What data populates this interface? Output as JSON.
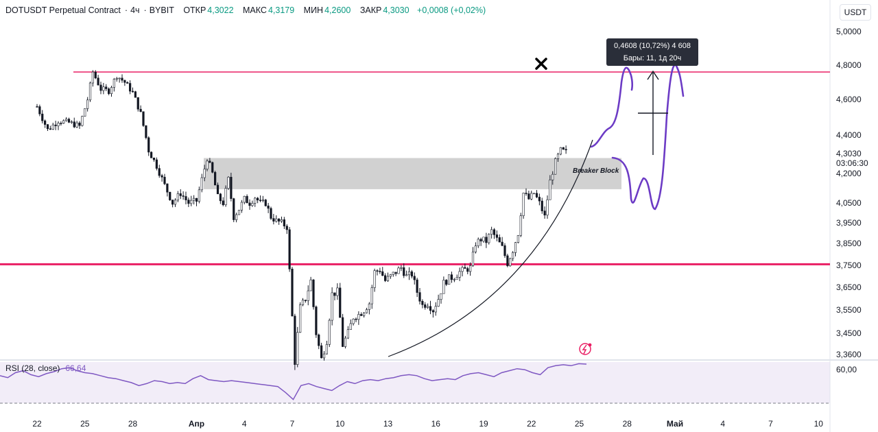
{
  "header": {
    "symbol": "DOTUSDT Perpetual Contract",
    "interval": "4ч",
    "exchange": "BYBIT",
    "open_label": "ОТКР",
    "open_value": "4,3022",
    "high_label": "МАКС",
    "high_value": "4,3179",
    "low_label": "МИН",
    "low_value": "4,2600",
    "close_label": "ЗАКР",
    "close_value": "4,3030",
    "change": "+0,0008 (+0,02%)"
  },
  "currency_button": "USDT",
  "colors": {
    "bull": "#089981",
    "bear": "#131722",
    "pink": "#e91e63",
    "rsi": "#7e57c2",
    "drawing": "#6c3bc5",
    "zone": "#cccccc"
  },
  "icons": [
    "close-x-icon",
    "bolt-alert-icon"
  ],
  "chart_data": {
    "type": "candlestick",
    "scale": "linear",
    "y_ticks": [
      "5,0000",
      "4,8000",
      "4,6000",
      "4,4000",
      "4,3030",
      "4,2000",
      "4,0500",
      "3,9500",
      "3,8500",
      "3,7500",
      "3,6500",
      "3,5500",
      "3,4500",
      "3,3600"
    ],
    "x_ticks": [
      {
        "label": "22",
        "index": 0
      },
      {
        "label": "25",
        "index": 18
      },
      {
        "label": "28",
        "index": 36
      },
      {
        "label": "Апр",
        "index": 60,
        "bold": true
      },
      {
        "label": "4",
        "index": 78
      },
      {
        "label": "7",
        "index": 96
      },
      {
        "label": "10",
        "index": 114
      },
      {
        "label": "13",
        "index": 132
      },
      {
        "label": "16",
        "index": 150
      },
      {
        "label": "19",
        "index": 168
      },
      {
        "label": "22",
        "index": 186
      },
      {
        "label": "25",
        "index": 204
      },
      {
        "label": "28",
        "index": 222
      },
      {
        "label": "Май",
        "index": 240,
        "bold": true
      },
      {
        "label": "4",
        "index": 258
      },
      {
        "label": "7",
        "index": 276
      },
      {
        "label": "10",
        "index": 294
      }
    ],
    "last_price": "4,3030",
    "countdown": "03:06:30",
    "anchors": [
      [
        0,
        4.56
      ],
      [
        4,
        4.43
      ],
      [
        8,
        4.48
      ],
      [
        12,
        4.47
      ],
      [
        16,
        4.45
      ],
      [
        19,
        4.6
      ],
      [
        21,
        4.76
      ],
      [
        24,
        4.66
      ],
      [
        27,
        4.65
      ],
      [
        30,
        4.74
      ],
      [
        33,
        4.7
      ],
      [
        36,
        4.64
      ],
      [
        39,
        4.52
      ],
      [
        42,
        4.32
      ],
      [
        45,
        4.24
      ],
      [
        48,
        4.14
      ],
      [
        51,
        4.05
      ],
      [
        54,
        4.1
      ],
      [
        57,
        4.05
      ],
      [
        60,
        4.06
      ],
      [
        62,
        4.17
      ],
      [
        64,
        4.28
      ],
      [
        66,
        4.2
      ],
      [
        68,
        4.08
      ],
      [
        70,
        4.05
      ],
      [
        72,
        4.17
      ],
      [
        74,
        3.98
      ],
      [
        76,
        4.02
      ],
      [
        78,
        4.07
      ],
      [
        80,
        4.05
      ],
      [
        82,
        4.08
      ],
      [
        84,
        4.05
      ],
      [
        86,
        4.05
      ],
      [
        88,
        3.98
      ],
      [
        90,
        3.96
      ],
      [
        92,
        3.95
      ],
      [
        94,
        3.93
      ],
      [
        96,
        3.52
      ],
      [
        97,
        3.33
      ],
      [
        99,
        3.56
      ],
      [
        101,
        3.6
      ],
      [
        103,
        3.68
      ],
      [
        105,
        3.45
      ],
      [
        107,
        3.34
      ],
      [
        109,
        3.42
      ],
      [
        111,
        3.62
      ],
      [
        113,
        3.63
      ],
      [
        115,
        3.4
      ],
      [
        117,
        3.45
      ],
      [
        119,
        3.52
      ],
      [
        121,
        3.53
      ],
      [
        123,
        3.55
      ],
      [
        125,
        3.58
      ],
      [
        127,
        3.72
      ],
      [
        129,
        3.73
      ],
      [
        131,
        3.68
      ],
      [
        133,
        3.7
      ],
      [
        135,
        3.72
      ],
      [
        137,
        3.74
      ],
      [
        139,
        3.7
      ],
      [
        141,
        3.71
      ],
      [
        143,
        3.63
      ],
      [
        145,
        3.57
      ],
      [
        147,
        3.58
      ],
      [
        149,
        3.55
      ],
      [
        151,
        3.6
      ],
      [
        153,
        3.67
      ],
      [
        155,
        3.69
      ],
      [
        157,
        3.7
      ],
      [
        159,
        3.72
      ],
      [
        161,
        3.73
      ],
      [
        163,
        3.74
      ],
      [
        165,
        3.85
      ],
      [
        167,
        3.87
      ],
      [
        169,
        3.86
      ],
      [
        171,
        3.91
      ],
      [
        173,
        3.87
      ],
      [
        175,
        3.83
      ],
      [
        177,
        3.76
      ],
      [
        179,
        3.82
      ],
      [
        181,
        3.9
      ],
      [
        183,
        4.1
      ],
      [
        185,
        4.07
      ],
      [
        187,
        4.1
      ],
      [
        189,
        4.05
      ],
      [
        191,
        3.98
      ],
      [
        193,
        4.16
      ],
      [
        195,
        4.26
      ],
      [
        197,
        4.32
      ],
      [
        199,
        4.31
      ]
    ],
    "levels": [
      {
        "price": 4.76,
        "color": "#e91e63"
      },
      {
        "price": 3.755,
        "color": "#e91e63"
      }
    ],
    "zones": [
      {
        "label": "Breaker Block",
        "top": 4.28,
        "bottom": 4.12,
        "from_index": 61,
        "to_index": 217
      }
    ],
    "measure": {
      "line1": "0,4608 (10,72%) 4 608",
      "line2": "Бары: 11, 1д 20ч"
    },
    "rsi": {
      "label": "RSI (28, close)",
      "value": "66,64",
      "tick": "60,00",
      "values": [
        55,
        53,
        58,
        60,
        56,
        54,
        57,
        59,
        62,
        63,
        60,
        58,
        57,
        55,
        53,
        52,
        50,
        48,
        45,
        47,
        50,
        49,
        47,
        48,
        47,
        52,
        55,
        51,
        50,
        49,
        50,
        49,
        48,
        47,
        46,
        45,
        44,
        38,
        31,
        45,
        47,
        44,
        42,
        40,
        45,
        49,
        47,
        50,
        51,
        50,
        52,
        53,
        55,
        56,
        55,
        52,
        50,
        51,
        52,
        51,
        55,
        57,
        58,
        56,
        54,
        58,
        60,
        62,
        61,
        58,
        56,
        63,
        65,
        66,
        65,
        67,
        66.64
      ]
    }
  }
}
